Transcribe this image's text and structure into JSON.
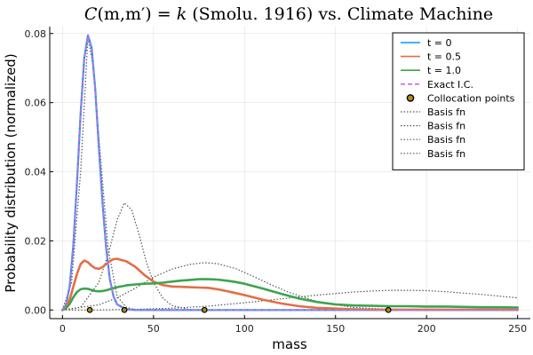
{
  "chart_data": {
    "type": "line",
    "title": "C(m,m′) = k (Smolu. 1916) vs. Climate Machine",
    "title_parts": {
      "func": "C",
      "args": "(m,m′)",
      "eq": " = ",
      "k": "k",
      "rest": " (Smolu. 1916) vs. Climate Machine"
    },
    "xlabel": "mass",
    "ylabel": "Probability distribution (normalized)",
    "xlim": [
      -7,
      257
    ],
    "ylim": [
      -0.0025,
      0.082
    ],
    "xticks": [
      0,
      50,
      100,
      150,
      200,
      250
    ],
    "yticks": [
      0.0,
      0.02,
      0.04,
      0.06,
      0.08
    ],
    "ytick_labels": [
      "0.00",
      "0.02",
      "0.04",
      "0.06",
      "0.08"
    ],
    "grid": true,
    "legend_position": "top-right",
    "x": [
      0,
      2,
      4,
      6,
      8,
      10,
      12,
      14,
      16,
      18,
      20,
      22,
      24,
      26,
      28,
      30,
      35,
      40,
      45,
      50,
      55,
      60,
      65,
      70,
      75,
      80,
      85,
      90,
      95,
      100,
      110,
      120,
      130,
      140,
      150,
      160,
      170,
      180,
      190,
      200,
      210,
      220,
      230,
      240,
      250
    ],
    "series": [
      {
        "name": "t = 0",
        "color": "#009AFA",
        "style": "solid",
        "width": 2.2,
        "values": [
          0,
          0.0015,
          0.007,
          0.019,
          0.037,
          0.057,
          0.073,
          0.0795,
          0.076,
          0.064,
          0.047,
          0.031,
          0.018,
          0.009,
          0.004,
          0.0016,
          0.0002,
          0,
          0,
          0,
          0,
          0,
          0,
          0,
          0,
          0,
          0,
          0,
          0,
          0,
          0,
          0,
          0,
          0,
          0,
          0,
          0,
          0,
          0,
          0,
          0,
          0,
          0,
          0,
          0
        ]
      },
      {
        "name": "t = 0.5",
        "color": "#E26F46",
        "style": "solid",
        "width": 2.6,
        "values": [
          0,
          0.0008,
          0.003,
          0.0068,
          0.0105,
          0.0133,
          0.0143,
          0.0138,
          0.0128,
          0.0121,
          0.0119,
          0.0124,
          0.0133,
          0.0141,
          0.0147,
          0.0148,
          0.0141,
          0.0125,
          0.0101,
          0.0082,
          0.0072,
          0.0068,
          0.0067,
          0.0066,
          0.0065,
          0.0064,
          0.006,
          0.0055,
          0.0049,
          0.0043,
          0.003,
          0.0019,
          0.0011,
          0.0006,
          0.0004,
          0.0002,
          0.0001,
          0.0001,
          0.0001,
          0.0001,
          0.0001,
          0.0001,
          0.0001,
          0.0001,
          0.0001
        ]
      },
      {
        "name": "t = 1.0",
        "color": "#3DA44D",
        "style": "solid",
        "width": 2.6,
        "values": [
          0,
          0.0005,
          0.0018,
          0.0037,
          0.0052,
          0.006,
          0.0062,
          0.0061,
          0.0058,
          0.0055,
          0.0054,
          0.0055,
          0.0057,
          0.006,
          0.0063,
          0.0066,
          0.0071,
          0.0074,
          0.0076,
          0.0077,
          0.0079,
          0.0082,
          0.0085,
          0.0087,
          0.0089,
          0.0089,
          0.0088,
          0.0085,
          0.0081,
          0.0076,
          0.0062,
          0.0047,
          0.0033,
          0.0023,
          0.0016,
          0.0013,
          0.0012,
          0.0011,
          0.0011,
          0.001,
          0.001,
          0.0009,
          0.0008,
          0.0008,
          0.0007
        ]
      },
      {
        "name": "Exact I.C.",
        "color": "#C271D2",
        "style": "dashed",
        "width": 1.6,
        "values": [
          0,
          0.0015,
          0.007,
          0.019,
          0.037,
          0.057,
          0.073,
          0.0795,
          0.076,
          0.064,
          0.047,
          0.031,
          0.018,
          0.009,
          0.004,
          0.0016,
          0.0002,
          0,
          0,
          0,
          0,
          0,
          0,
          0,
          0,
          0,
          0,
          0,
          0,
          0,
          0,
          0,
          0,
          0,
          0,
          0,
          0,
          0,
          0,
          0,
          0,
          0,
          0,
          0,
          0
        ]
      }
    ],
    "collocation_points": {
      "name": "Collocation points",
      "color": "#AC8D18",
      "edge": "#000000",
      "x": [
        15,
        34,
        78,
        179
      ],
      "y": [
        0,
        0,
        0,
        0
      ]
    },
    "basis_functions": [
      {
        "name": "Basis fn",
        "color": "#555555",
        "style": "dotted",
        "x": [
          0,
          5,
          10,
          14,
          17,
          20,
          25,
          30,
          35,
          40,
          45,
          50,
          55,
          60
        ],
        "values": [
          0,
          0.008,
          0.04,
          0.079,
          0.07,
          0.05,
          0.018,
          0.004,
          0.0008,
          0.0001,
          0,
          0,
          0,
          0
        ]
      },
      {
        "name": "Basis fn",
        "color": "#555555",
        "style": "dotted",
        "x": [
          0,
          10,
          20,
          25,
          30,
          34,
          38,
          42,
          46,
          50,
          55,
          60,
          70,
          80,
          90,
          100
        ],
        "values": [
          0,
          0.0008,
          0.008,
          0.016,
          0.026,
          0.031,
          0.029,
          0.022,
          0.014,
          0.008,
          0.0035,
          0.0013,
          0.0001,
          0,
          0,
          0
        ]
      },
      {
        "name": "Basis fn",
        "color": "#555555",
        "style": "dotted",
        "x": [
          0,
          20,
          30,
          40,
          50,
          60,
          70,
          78,
          85,
          95,
          105,
          115,
          125,
          140,
          160,
          180,
          200,
          220,
          250
        ],
        "values": [
          0,
          0.0015,
          0.0035,
          0.0063,
          0.0095,
          0.0118,
          0.0132,
          0.0137,
          0.0134,
          0.012,
          0.0097,
          0.0072,
          0.005,
          0.0024,
          0.0007,
          0.0002,
          0,
          0,
          0
        ]
      },
      {
        "name": "Basis fn",
        "color": "#555555",
        "style": "dotted",
        "x": [
          0,
          20,
          40,
          60,
          80,
          100,
          120,
          140,
          160,
          170,
          180,
          190,
          200,
          210,
          220,
          230,
          240,
          250
        ],
        "values": [
          0,
          0,
          0.0002,
          0.0005,
          0.0011,
          0.0021,
          0.0032,
          0.0043,
          0.0052,
          0.0055,
          0.0057,
          0.0057,
          0.0056,
          0.0053,
          0.0049,
          0.0045,
          0.004,
          0.0035
        ]
      }
    ],
    "legend": [
      {
        "label": "t = 0",
        "kind": "line",
        "color": "#009AFA",
        "dash": ""
      },
      {
        "label": "t = 0.5",
        "kind": "line",
        "color": "#E26F46",
        "dash": ""
      },
      {
        "label": "t = 1.0",
        "kind": "line",
        "color": "#3DA44D",
        "dash": ""
      },
      {
        "label": "Exact I.C.",
        "kind": "line",
        "color": "#C271D2",
        "dash": "5,3"
      },
      {
        "label": "Collocation points",
        "kind": "marker",
        "color": "#AC8D18",
        "dash": ""
      },
      {
        "label": "Basis fn",
        "kind": "line",
        "color": "#555555",
        "dash": "1.5,2"
      },
      {
        "label": "Basis fn",
        "kind": "line",
        "color": "#555555",
        "dash": "1.5,2"
      },
      {
        "label": "Basis fn",
        "kind": "line",
        "color": "#555555",
        "dash": "1.5,2"
      },
      {
        "label": "Basis fn",
        "kind": "line",
        "color": "#555555",
        "dash": "1.5,2"
      }
    ]
  }
}
